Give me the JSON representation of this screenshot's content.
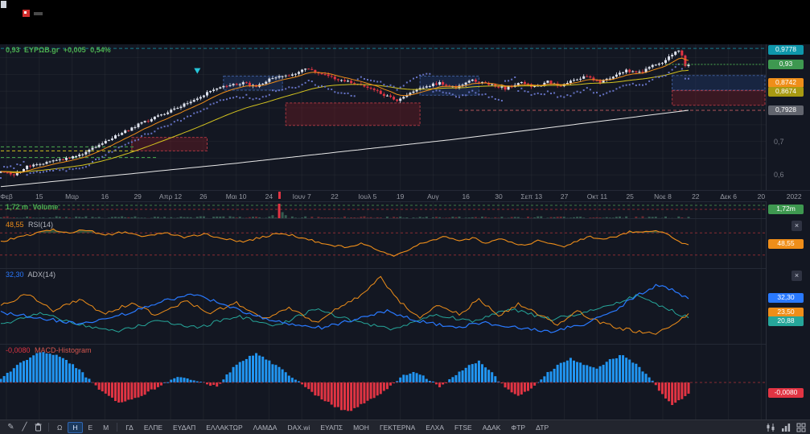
{
  "titlebar": {
    "icons": [
      "window-glyph",
      "app-icon",
      "menu-glyph"
    ]
  },
  "legend": {
    "price": "0,93",
    "symbol": "EYPΩB.gr",
    "change": "+0,005",
    "change_pct": "0,54%",
    "color": "#4caf50"
  },
  "price_axis": {
    "grid_labels": [
      {
        "text": "0,7",
        "value": 0.7
      },
      {
        "text": "0,6",
        "value": 0.6
      }
    ],
    "badges": [
      {
        "text": "0,9778",
        "value": 0.9778,
        "color": "#0e97ab"
      },
      {
        "text": "0,93",
        "value": 0.93,
        "color": "#3e9850"
      },
      {
        "text": "0,8742",
        "value": 0.8742,
        "color": "#ef8e19"
      },
      {
        "text": "0,8674",
        "value": 0.8674,
        "color": "#a89a12"
      },
      {
        "text": "0,7928",
        "value": 0.7928,
        "color": "#62656e"
      }
    ]
  },
  "time_axis": {
    "labels": [
      "Φεβ",
      "15",
      "Μαρ",
      "16",
      "29",
      "Απρ 12",
      "26",
      "Μαι 10",
      "24",
      "Ιουν 7",
      "22",
      "Ιουλ 5",
      "19",
      "Αυγ",
      "16",
      "30",
      "Σεπ 13",
      "27",
      "Οκτ 11",
      "25",
      "Νοε 8",
      "22",
      "Δεκ 6",
      "20",
      "2022"
    ]
  },
  "panes": {
    "volume": {
      "value": "1,72 m",
      "name": "Volume",
      "badge": {
        "text": "1,72m",
        "color": "#3e9850"
      }
    },
    "rsi": {
      "value": "48,55",
      "name": "RSI(14)",
      "levels": [
        70,
        30
      ],
      "badge": {
        "text": "48,55",
        "color": "#ef8e19"
      },
      "close_label": "×"
    },
    "adx": {
      "value": "32,30",
      "name": "ADX(14)",
      "badges": [
        {
          "text": "32,30",
          "value": 32.3,
          "color": "#2979ff"
        },
        {
          "text": "23,50",
          "value": 23.5,
          "color": "#ef8e19"
        },
        {
          "text": "20,88",
          "value": 20.88,
          "color": "#26a69a"
        }
      ],
      "close_label": "×"
    },
    "macd": {
      "value": "-0,0080",
      "name": "MACD-Histogram",
      "badge": {
        "text": "-0,0080",
        "value": -0.008,
        "color": "#e13443"
      }
    }
  },
  "toolbar": {
    "tools": [
      "pencil-icon",
      "line-tool-icon",
      "trash-icon"
    ],
    "tool_glyphs": [
      "✎",
      "╱",
      ""
    ],
    "timeframes": [
      "Ω",
      "Η",
      "Ε",
      "Μ"
    ],
    "active_timeframe": "Η",
    "symbols": [
      "ΓΔ",
      "ΕΛΠΕ",
      "ΕΥΔΑΠ",
      "ΕΛΛΑΚΤΩΡ",
      "ΛΑΜΔΑ",
      "DAX.wi",
      "ΕΥΑΠΣ",
      "ΜΟΗ",
      "ΓΕΚΤΕΡΝΑ",
      "ΕΛΧΑ",
      "FTSE",
      "ΑΔΑΚ",
      "ΦΤΡ",
      "ΔΤΡ"
    ],
    "right_icons": [
      "candlestick-icon",
      "histogram-icon",
      "grid-icon"
    ]
  },
  "chart_data": {
    "type": "candlestick",
    "symbol": "EYPΩB.gr",
    "last_price": 0.93,
    "change": 0.005,
    "change_pct": 0.54,
    "bars": 211,
    "price_range": [
      0.555,
      0.99
    ],
    "price_waypoints": [
      [
        0,
        0.612
      ],
      [
        4,
        0.6
      ],
      [
        8,
        0.625
      ],
      [
        14,
        0.638
      ],
      [
        19,
        0.645
      ],
      [
        24,
        0.66
      ],
      [
        30,
        0.69
      ],
      [
        36,
        0.72
      ],
      [
        42,
        0.75
      ],
      [
        49,
        0.78
      ],
      [
        54,
        0.8
      ],
      [
        60,
        0.83
      ],
      [
        66,
        0.86
      ],
      [
        69,
        0.865
      ],
      [
        74,
        0.875
      ],
      [
        78,
        0.862
      ],
      [
        82,
        0.885
      ],
      [
        86,
        0.895
      ],
      [
        89,
        0.9
      ],
      [
        93,
        0.918
      ],
      [
        97,
        0.905
      ],
      [
        101,
        0.89
      ],
      [
        105,
        0.88
      ],
      [
        109,
        0.872
      ],
      [
        113,
        0.858
      ],
      [
        117,
        0.838
      ],
      [
        121,
        0.822
      ],
      [
        125,
        0.845
      ],
      [
        129,
        0.862
      ],
      [
        134,
        0.875
      ],
      [
        139,
        0.862
      ],
      [
        144,
        0.882
      ],
      [
        149,
        0.872
      ],
      [
        154,
        0.858
      ],
      [
        159,
        0.875
      ],
      [
        163,
        0.862
      ],
      [
        167,
        0.878
      ],
      [
        171,
        0.865
      ],
      [
        175,
        0.885
      ],
      [
        179,
        0.893
      ],
      [
        183,
        0.878
      ],
      [
        187,
        0.895
      ],
      [
        191,
        0.912
      ],
      [
        195,
        0.905
      ],
      [
        199,
        0.925
      ],
      [
        202,
        0.935
      ],
      [
        204,
        0.952
      ],
      [
        206,
        0.968
      ],
      [
        207,
        0.973
      ],
      [
        208,
        0.955
      ],
      [
        209,
        0.938
      ],
      [
        210,
        0.93
      ]
    ],
    "sma_white_waypoints": [
      [
        0,
        0.565
      ],
      [
        70,
        0.633
      ],
      [
        140,
        0.708
      ],
      [
        210,
        0.793
      ]
    ],
    "zones": [
      {
        "i1": 40,
        "i2": 63,
        "p1": 0.672,
        "p2": 0.712,
        "type": "supply-red"
      },
      {
        "i1": 68,
        "i2": 86,
        "p1": 0.853,
        "p2": 0.895,
        "type": "demand-blue"
      },
      {
        "i1": 87,
        "i2": 128,
        "p1": 0.748,
        "p2": 0.815,
        "type": "supply-red"
      },
      {
        "i1": 128,
        "i2": 146,
        "p1": 0.838,
        "p2": 0.895,
        "type": "demand-blue"
      },
      {
        "i1": 205,
        "i2": 234,
        "p1": 0.853,
        "p2": 0.897,
        "type": "demand-blue"
      },
      {
        "i1": 205,
        "i2": 234,
        "p1": 0.808,
        "p2": 0.852,
        "type": "supply-red"
      }
    ],
    "levels": [
      {
        "p": 0.684,
        "i1": 0,
        "i2": 41,
        "color": "#4caf50"
      },
      {
        "p": 0.672,
        "i1": 0,
        "i2": 41,
        "color": "#d4c41f"
      },
      {
        "p": 0.652,
        "i1": 0,
        "i2": 48,
        "color": "#4caf50"
      },
      {
        "p": 0.7928,
        "i1": 140,
        "i2": 234,
        "color": "#b2555a"
      },
      {
        "p": 0.9778,
        "i1": 0,
        "i2": 234,
        "color": "#147e8f"
      }
    ],
    "last_price_line": {
      "p": 0.93,
      "i1": 203,
      "i2": 234,
      "color": "#4caf50"
    },
    "marker": {
      "i": 60,
      "p": 0.902,
      "shape": "triangle-down",
      "color": "#26c6da"
    },
    "volume": {
      "spike_index": 85
    },
    "rsi_waypoints": [
      [
        0,
        55
      ],
      [
        6,
        62
      ],
      [
        12,
        71
      ],
      [
        16,
        76
      ],
      [
        20,
        70
      ],
      [
        26,
        76
      ],
      [
        32,
        66
      ],
      [
        38,
        72
      ],
      [
        44,
        64
      ],
      [
        50,
        70
      ],
      [
        56,
        62
      ],
      [
        62,
        68
      ],
      [
        68,
        60
      ],
      [
        74,
        54
      ],
      [
        80,
        63
      ],
      [
        86,
        70
      ],
      [
        90,
        64
      ],
      [
        94,
        58
      ],
      [
        98,
        52
      ],
      [
        102,
        47
      ],
      [
        106,
        43
      ],
      [
        110,
        50
      ],
      [
        114,
        42
      ],
      [
        118,
        31
      ],
      [
        120,
        27
      ],
      [
        124,
        38
      ],
      [
        128,
        50
      ],
      [
        132,
        57
      ],
      [
        136,
        63
      ],
      [
        140,
        54
      ],
      [
        144,
        61
      ],
      [
        148,
        52
      ],
      [
        152,
        60
      ],
      [
        156,
        53
      ],
      [
        160,
        47
      ],
      [
        164,
        57
      ],
      [
        168,
        50
      ],
      [
        172,
        44
      ],
      [
        176,
        55
      ],
      [
        180,
        63
      ],
      [
        184,
        57
      ],
      [
        188,
        64
      ],
      [
        192,
        72
      ],
      [
        196,
        70
      ],
      [
        199,
        74
      ],
      [
        202,
        71
      ],
      [
        204,
        65
      ],
      [
        206,
        58
      ],
      [
        208,
        52
      ],
      [
        210,
        48.55
      ]
    ],
    "adx_waypoints": {
      "adx": [
        [
          0,
          24
        ],
        [
          12,
          21
        ],
        [
          24,
          17
        ],
        [
          36,
          22
        ],
        [
          48,
          30
        ],
        [
          58,
          35
        ],
        [
          68,
          29
        ],
        [
          78,
          22
        ],
        [
          88,
          17
        ],
        [
          98,
          15
        ],
        [
          108,
          20
        ],
        [
          118,
          25
        ],
        [
          128,
          19
        ],
        [
          138,
          15
        ],
        [
          148,
          18
        ],
        [
          158,
          15
        ],
        [
          168,
          13
        ],
        [
          178,
          17
        ],
        [
          188,
          26
        ],
        [
          194,
          34
        ],
        [
          200,
          40
        ],
        [
          205,
          38
        ],
        [
          210,
          32.3
        ]
      ],
      "di_plus": [
        [
          0,
          28
        ],
        [
          8,
          35
        ],
        [
          16,
          25
        ],
        [
          24,
          32
        ],
        [
          32,
          23
        ],
        [
          40,
          30
        ],
        [
          48,
          22
        ],
        [
          56,
          31
        ],
        [
          64,
          24
        ],
        [
          72,
          30
        ],
        [
          80,
          20
        ],
        [
          88,
          27
        ],
        [
          96,
          18
        ],
        [
          104,
          28
        ],
        [
          110,
          34
        ],
        [
          116,
          45
        ],
        [
          122,
          30
        ],
        [
          128,
          21
        ],
        [
          134,
          29
        ],
        [
          140,
          23
        ],
        [
          146,
          32
        ],
        [
          152,
          22
        ],
        [
          158,
          29
        ],
        [
          164,
          23
        ],
        [
          170,
          17
        ],
        [
          176,
          25
        ],
        [
          182,
          19
        ],
        [
          188,
          15
        ],
        [
          194,
          13
        ],
        [
          200,
          11
        ],
        [
          204,
          16
        ],
        [
          208,
          21
        ],
        [
          210,
          23.5
        ]
      ],
      "di_minus": [
        [
          0,
          17
        ],
        [
          12,
          24
        ],
        [
          24,
          17
        ],
        [
          36,
          13
        ],
        [
          48,
          19
        ],
        [
          60,
          15
        ],
        [
          72,
          22
        ],
        [
          84,
          16
        ],
        [
          96,
          26
        ],
        [
          108,
          19
        ],
        [
          120,
          14
        ],
        [
          132,
          23
        ],
        [
          144,
          19
        ],
        [
          156,
          26
        ],
        [
          168,
          20
        ],
        [
          180,
          25
        ],
        [
          188,
          30
        ],
        [
          194,
          34
        ],
        [
          200,
          29
        ],
        [
          205,
          25
        ],
        [
          210,
          20.88
        ]
      ]
    },
    "macd_waypoints": [
      [
        0,
        0.003
      ],
      [
        6,
        0.014
      ],
      [
        12,
        0.022
      ],
      [
        18,
        0.019
      ],
      [
        24,
        0.009
      ],
      [
        30,
        -0.005
      ],
      [
        36,
        -0.014
      ],
      [
        42,
        -0.011
      ],
      [
        48,
        -0.003
      ],
      [
        54,
        0.004
      ],
      [
        60,
        0.001
      ],
      [
        66,
        -0.003
      ],
      [
        72,
        0.013
      ],
      [
        78,
        0.021
      ],
      [
        84,
        0.012
      ],
      [
        90,
        0.002
      ],
      [
        96,
        -0.009
      ],
      [
        102,
        -0.017
      ],
      [
        106,
        -0.021
      ],
      [
        112,
        -0.013
      ],
      [
        118,
        -0.005
      ],
      [
        122,
        0.004
      ],
      [
        126,
        0.008
      ],
      [
        130,
        0.003
      ],
      [
        134,
        -0.003
      ],
      [
        138,
        0.004
      ],
      [
        142,
        0.011
      ],
      [
        146,
        0.015
      ],
      [
        150,
        0.007
      ],
      [
        154,
        -0.004
      ],
      [
        158,
        -0.009
      ],
      [
        162,
        -0.005
      ],
      [
        166,
        0.005
      ],
      [
        170,
        0.012
      ],
      [
        174,
        0.017
      ],
      [
        178,
        0.013
      ],
      [
        182,
        0.01
      ],
      [
        186,
        0.016
      ],
      [
        190,
        0.02
      ],
      [
        194,
        0.013
      ],
      [
        198,
        0.004
      ],
      [
        202,
        -0.009
      ],
      [
        205,
        -0.016
      ],
      [
        207,
        -0.013
      ],
      [
        210,
        -0.008
      ]
    ],
    "indicator_ranges": {
      "rsi": [
        5,
        95
      ],
      "adx": [
        5,
        50
      ],
      "macd": [
        -0.027,
        0.027
      ]
    }
  }
}
